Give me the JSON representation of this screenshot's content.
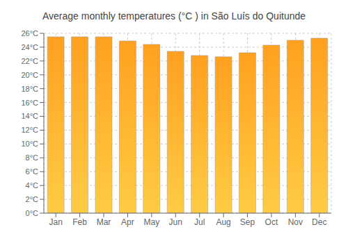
{
  "chart_data": {
    "type": "bar",
    "title": "Average monthly temperatures (°C ) in São Luís do Quitunde",
    "categories": [
      "Jan",
      "Feb",
      "Mar",
      "Apr",
      "May",
      "Jun",
      "Jul",
      "Aug",
      "Sep",
      "Oct",
      "Nov",
      "Dec"
    ],
    "values": [
      25.5,
      25.5,
      25.5,
      24.9,
      24.4,
      23.4,
      22.8,
      22.6,
      23.2,
      24.3,
      25.0,
      25.3
    ],
    "color": "#FFA020",
    "ylim": [
      0,
      26
    ],
    "yticks": [
      {
        "value": 0,
        "label": "0°C"
      },
      {
        "value": 2,
        "label": "2°C"
      },
      {
        "value": 4,
        "label": "4°C"
      },
      {
        "value": 6,
        "label": "6°C"
      },
      {
        "value": 8,
        "label": "8°C"
      },
      {
        "value": 10,
        "label": "10°C"
      },
      {
        "value": 12,
        "label": "12°C"
      },
      {
        "value": 14,
        "label": "14°C"
      },
      {
        "value": 16,
        "label": "16°C"
      },
      {
        "value": 18,
        "label": "18°C"
      },
      {
        "value": 20,
        "label": "20°C"
      },
      {
        "value": 22,
        "label": "22°C"
      },
      {
        "value": 24,
        "label": "24°C"
      },
      {
        "value": 26,
        "label": "26°C"
      }
    ],
    "grid": true
  }
}
